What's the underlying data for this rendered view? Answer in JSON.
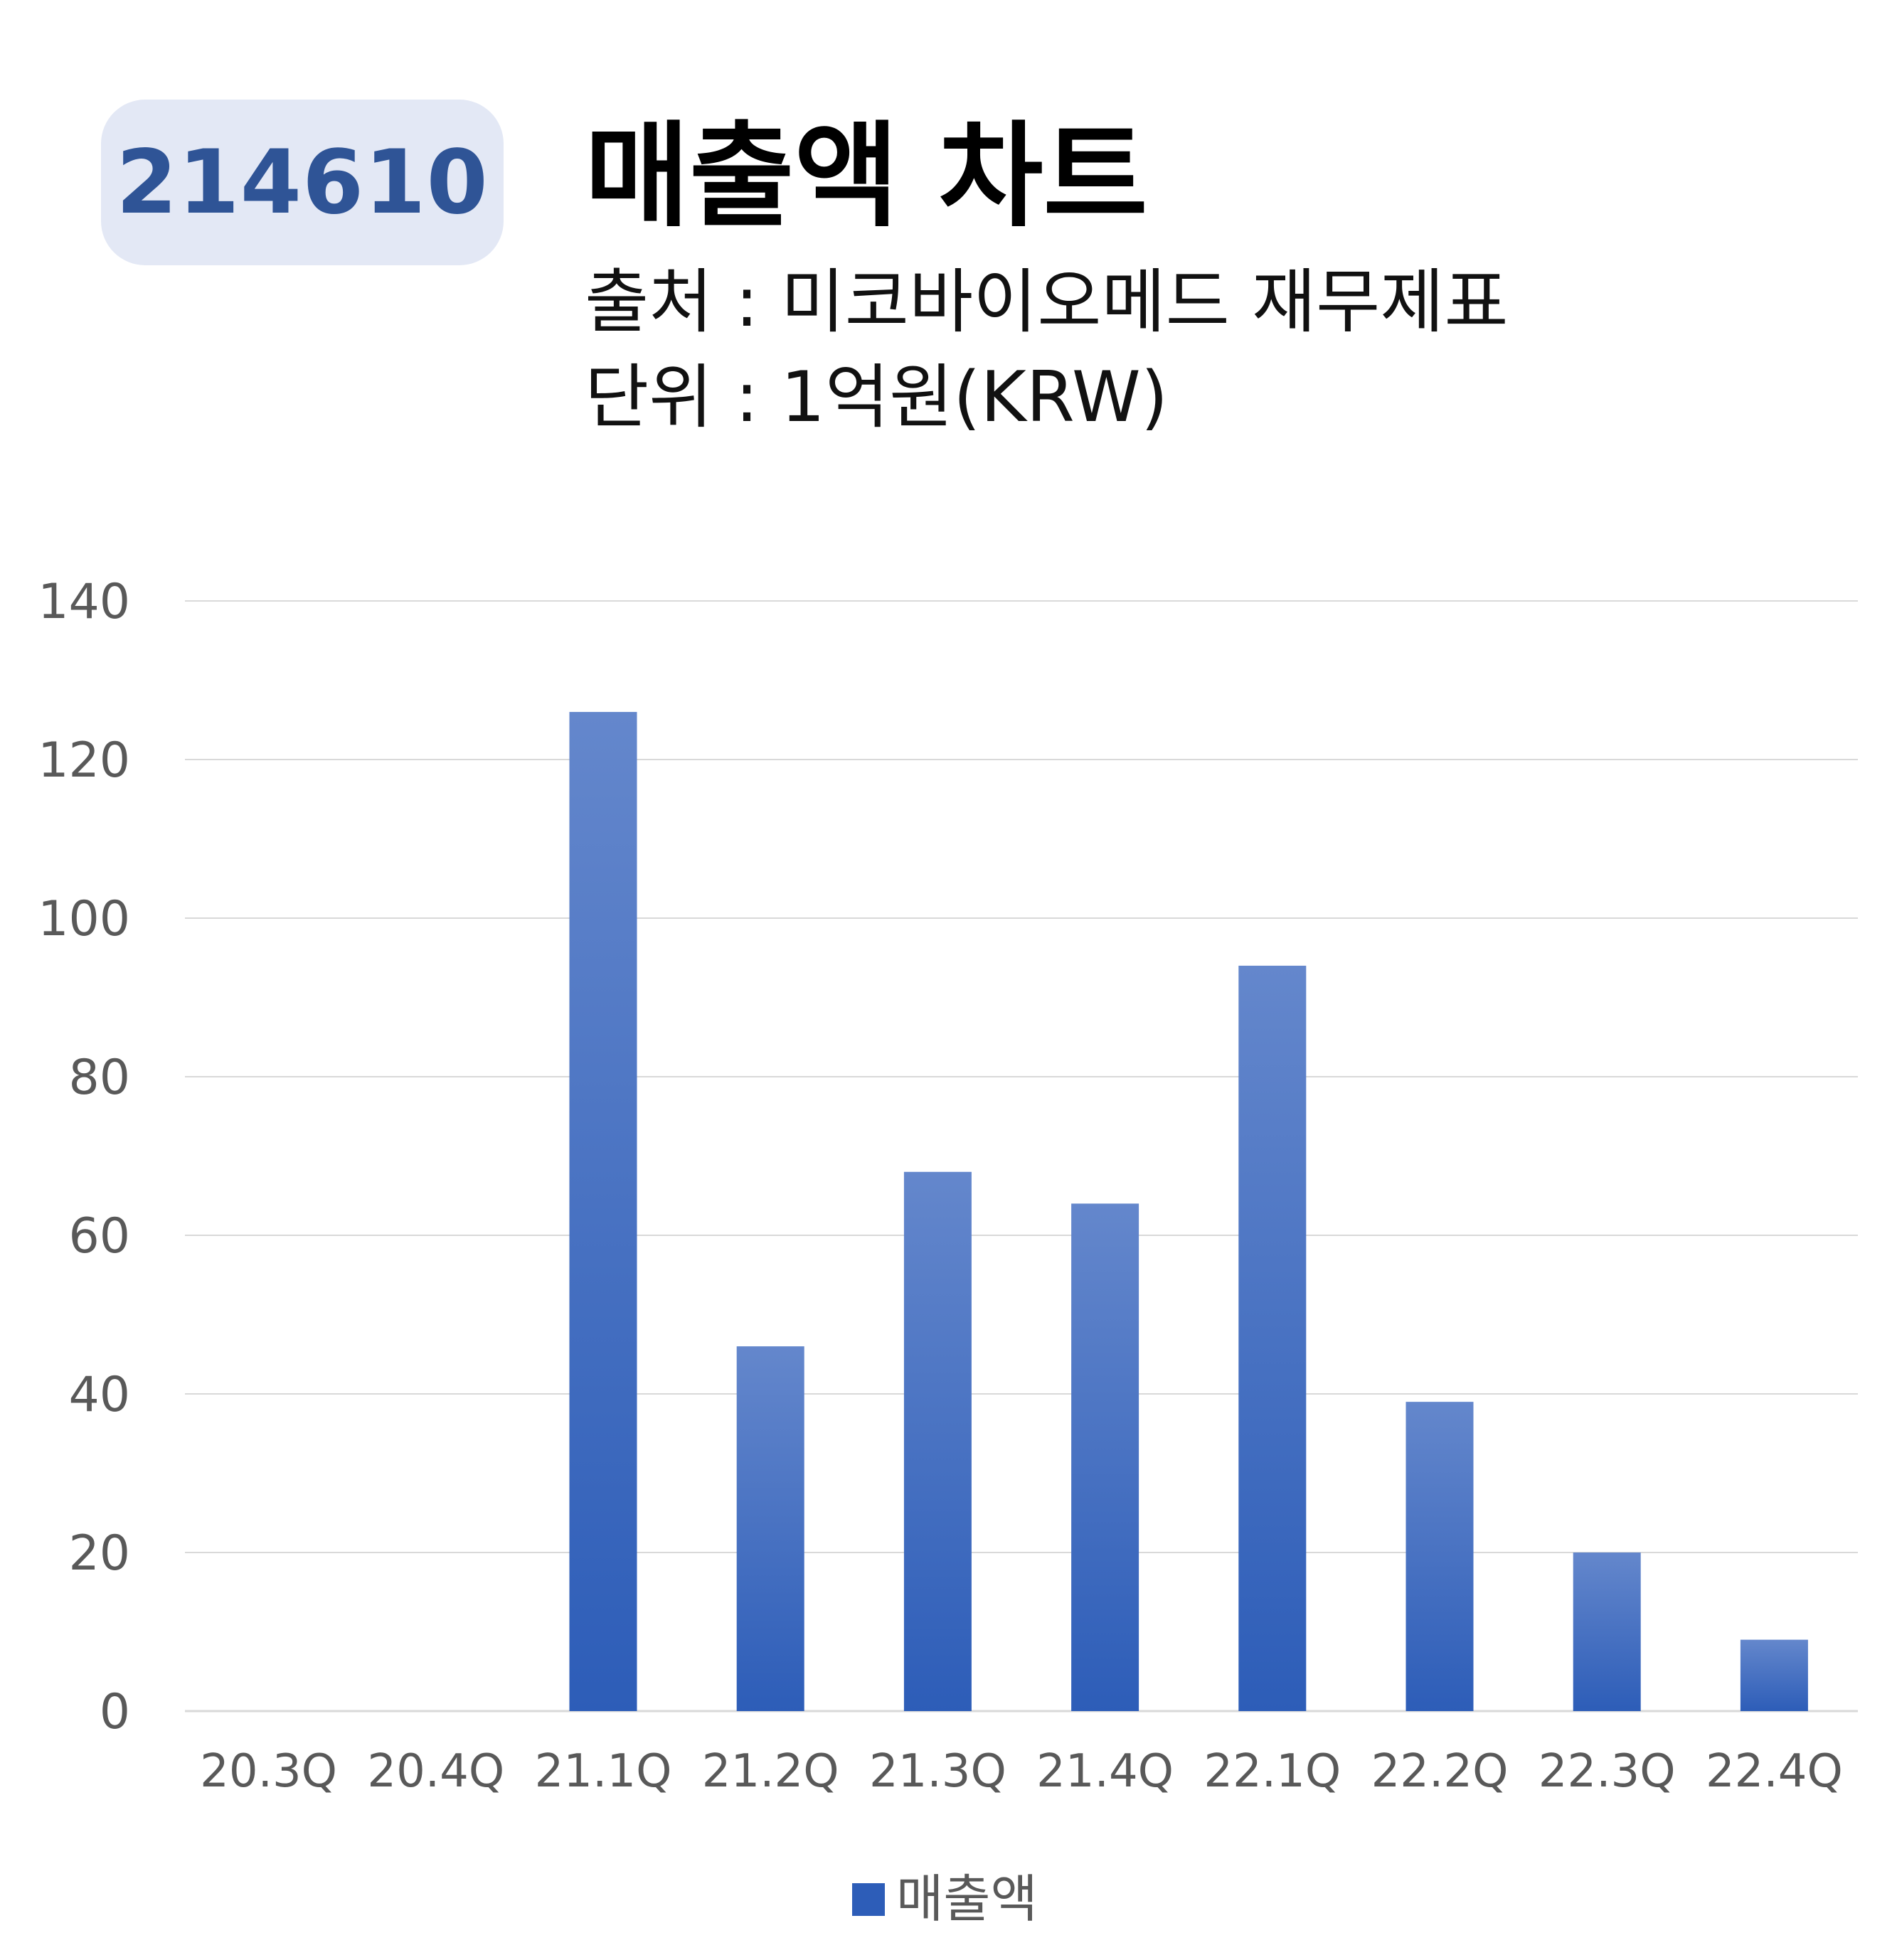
{
  "header": {
    "code": "214610",
    "title": "매출액 차트",
    "source": "출처 : 미코바이오메드 재무제표",
    "unit": "단위 : 1억원(KRW)"
  },
  "colors": {
    "bar_top": "#6487cc",
    "bar_bottom": "#2d5db8",
    "badge_bg": "#e3e8f5",
    "badge_text": "#2f5496",
    "grid": "#d9d9d9",
    "axis_text": "#595959"
  },
  "chart_data": {
    "type": "bar",
    "categories": [
      "20.3Q",
      "20.4Q",
      "21.1Q",
      "21.2Q",
      "21.3Q",
      "21.4Q",
      "22.1Q",
      "22.2Q",
      "22.3Q",
      "22.4Q"
    ],
    "series": [
      {
        "name": "매출액",
        "values": [
          0,
          0,
          126,
          46,
          68,
          64,
          94,
          39,
          20,
          9
        ]
      }
    ],
    "yticks": [
      0,
      20,
      40,
      60,
      80,
      100,
      120,
      140
    ],
    "ylim": [
      0,
      140
    ],
    "grid": true,
    "legend": "bottom"
  }
}
